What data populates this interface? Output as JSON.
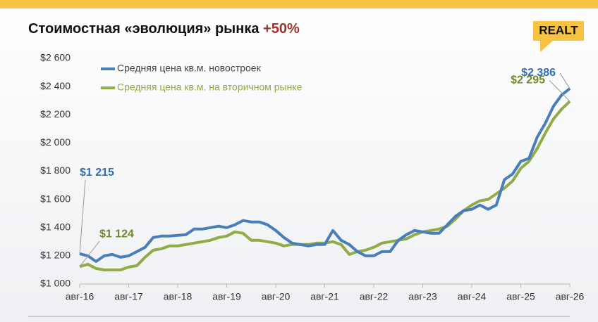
{
  "title": "Стоимостная «эволюция» рынка",
  "title_highlight": "+50%",
  "logo": "REALT",
  "chart_data": {
    "type": "line",
    "categories": [
      "авг-16",
      null,
      null,
      null,
      null,
      null,
      "авг-17",
      null,
      null,
      null,
      null,
      null,
      "авг-18",
      null,
      null,
      null,
      null,
      null,
      "авг-19",
      null,
      null,
      null,
      null,
      null,
      "авг-20",
      null,
      null,
      null,
      null,
      null,
      "авг-21",
      null,
      null,
      null,
      null,
      null,
      "авг-22",
      null,
      null,
      null,
      null,
      null,
      "авг-23",
      null,
      null,
      null,
      null,
      null,
      "авг-24",
      null,
      null,
      null,
      null,
      null,
      "авг-25",
      null,
      null,
      null,
      null,
      null,
      "авг-26"
    ],
    "series": [
      {
        "name": "Средняя цена кв.м. новостроек",
        "color": "#4a7ebb",
        "values": [
          1215,
          1200,
          1160,
          1200,
          1210,
          1190,
          1200,
          1230,
          1260,
          1330,
          1340,
          1340,
          1345,
          1350,
          1390,
          1390,
          1400,
          1410,
          1400,
          1420,
          1450,
          1440,
          1440,
          1420,
          1380,
          1330,
          1290,
          1280,
          1270,
          1280,
          1280,
          1380,
          1310,
          1280,
          1230,
          1200,
          1200,
          1230,
          1230,
          1310,
          1350,
          1380,
          1370,
          1360,
          1360,
          1420,
          1480,
          1520,
          1530,
          1560,
          1530,
          1560,
          1740,
          1780,
          1870,
          1890,
          2040,
          2140,
          2260,
          2340,
          2386
        ],
        "value_labels": [
          "$1 215",
          null,
          null,
          null,
          null,
          null,
          null,
          null,
          null,
          null,
          null,
          null,
          null,
          null,
          null,
          null,
          null,
          null,
          null,
          null,
          null,
          null,
          null,
          null,
          null,
          null,
          null,
          null,
          null,
          null,
          null,
          null,
          null,
          null,
          null,
          null,
          null,
          null,
          null,
          null,
          null,
          null,
          null,
          null,
          null,
          null,
          null,
          null,
          null,
          null,
          null,
          null,
          null,
          null,
          null,
          null,
          null,
          null,
          null,
          null,
          "$2 386"
        ]
      },
      {
        "name": "Средняя цена кв.м. на вторичном рынке",
        "color": "#8fac45",
        "values": [
          1124,
          1140,
          1110,
          1100,
          1100,
          1100,
          1120,
          1130,
          1190,
          1240,
          1250,
          1270,
          1270,
          1280,
          1290,
          1300,
          1310,
          1330,
          1340,
          1370,
          1360,
          1310,
          1310,
          1300,
          1290,
          1270,
          1280,
          1280,
          1280,
          1290,
          1290,
          1300,
          1280,
          1210,
          1230,
          1240,
          1260,
          1290,
          1300,
          1310,
          1320,
          1350,
          1370,
          1380,
          1390,
          1410,
          1460,
          1520,
          1560,
          1590,
          1600,
          1640,
          1680,
          1730,
          1820,
          1870,
          1960,
          2070,
          2170,
          2240,
          2295
        ],
        "value_labels": [
          "$1 124",
          null,
          null,
          null,
          null,
          null,
          null,
          null,
          null,
          null,
          null,
          null,
          null,
          null,
          null,
          null,
          null,
          null,
          null,
          null,
          null,
          null,
          null,
          null,
          null,
          null,
          null,
          null,
          null,
          null,
          null,
          null,
          null,
          null,
          null,
          null,
          null,
          null,
          null,
          null,
          null,
          null,
          null,
          null,
          null,
          null,
          null,
          null,
          null,
          null,
          null,
          null,
          null,
          null,
          null,
          null,
          null,
          null,
          null,
          null,
          "$2 295"
        ]
      }
    ],
    "ylim": [
      1000,
      2600
    ],
    "yticks": [
      {
        "value": 1000,
        "label": "$1 000"
      },
      {
        "value": 1200,
        "label": "$1 200"
      },
      {
        "value": 1400,
        "label": "$1 400"
      },
      {
        "value": 1600,
        "label": "$1 600"
      },
      {
        "value": 1800,
        "label": "$1 800"
      },
      {
        "value": 2000,
        "label": "$2 000"
      },
      {
        "value": 2200,
        "label": "$2 200"
      },
      {
        "value": 2400,
        "label": "$2 400"
      },
      {
        "value": 2600,
        "label": "$2 600"
      }
    ],
    "grid": false,
    "legend": "top-left"
  }
}
